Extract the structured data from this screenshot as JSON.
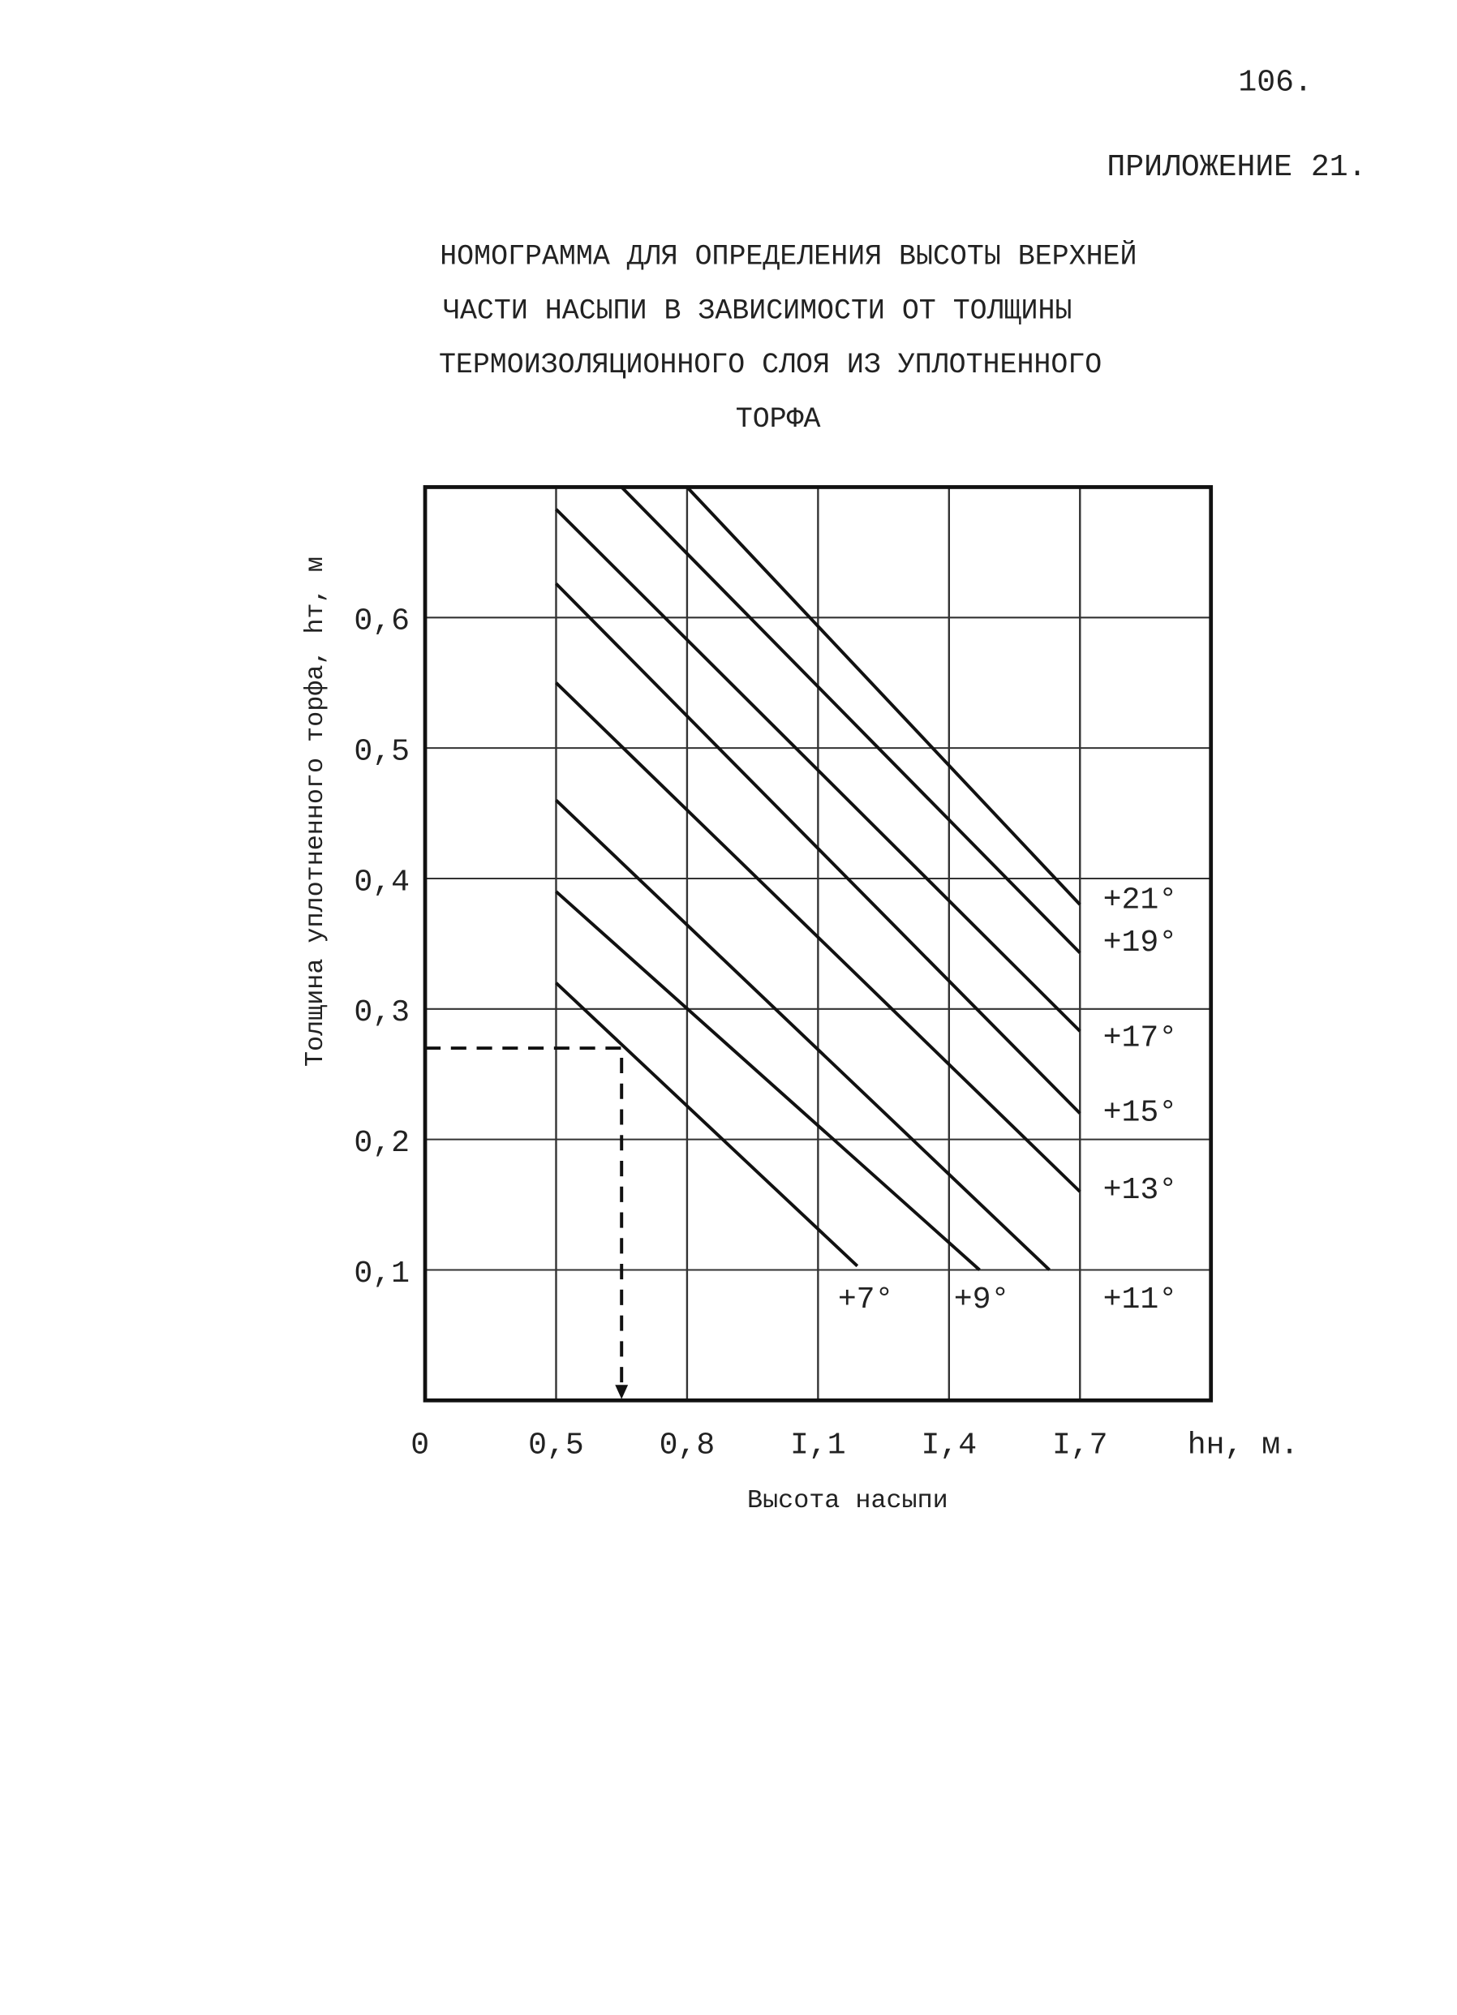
{
  "page_number": "106.",
  "appendix": "ПРИЛОЖЕНИЕ 21.",
  "chart_data": {
    "type": "line",
    "title_lines": [
      "НОМОГРАММА ДЛЯ ОПРЕДЕЛЕНИЯ ВЫСОТЫ ВЕРХНЕЙ",
      "ЧАСТИ НАСЫПИ В ЗАВИСИМОСТИ ОТ ТОЛЩИНЫ",
      "ТЕРМОИЗОЛЯЦИОННОГО СЛОЯ ИЗ УПЛОТНЕННОГО",
      "ТОРФА"
    ],
    "y_label": "Толщина уплотненного торфа, hт, м",
    "x_label": "Высота насыпи",
    "x_unit_label": "hн, м.",
    "origin_label": "0",
    "xlim": [
      0.2,
      2.0
    ],
    "ylim": [
      0,
      0.7
    ],
    "xticks": [
      {
        "value": 0.5,
        "label": "0,5"
      },
      {
        "value": 0.8,
        "label": "0,8"
      },
      {
        "value": 1.1,
        "label": "I,1"
      },
      {
        "value": 1.4,
        "label": "I,4"
      },
      {
        "value": 1.7,
        "label": "I,7"
      }
    ],
    "yticks": [
      {
        "value": 0.1,
        "label": "0,1"
      },
      {
        "value": 0.2,
        "label": "0,2"
      },
      {
        "value": 0.3,
        "label": "0,3"
      },
      {
        "value": 0.4,
        "label": "0,4"
      },
      {
        "value": 0.5,
        "label": "0,5"
      },
      {
        "value": 0.6,
        "label": "0,6"
      }
    ],
    "grid": true,
    "color": "#111",
    "series": [
      {
        "name": "+7°",
        "x": [
          0.5,
          1.19
        ],
        "values": [
          0.32,
          0.103
        ]
      },
      {
        "name": "+9°",
        "x": [
          0.5,
          1.47
        ],
        "values": [
          0.39,
          0.1
        ]
      },
      {
        "name": "+11°",
        "x": [
          0.5,
          1.63
        ],
        "values": [
          0.46,
          0.1
        ]
      },
      {
        "name": "+13°",
        "x": [
          0.5,
          1.7
        ],
        "values": [
          0.55,
          0.16
        ]
      },
      {
        "name": "+15°",
        "x": [
          0.5,
          1.7
        ],
        "values": [
          0.626,
          0.22
        ]
      },
      {
        "name": "+17°",
        "x": [
          0.5,
          1.7
        ],
        "values": [
          0.683,
          0.283
        ]
      },
      {
        "name": "+19°",
        "x": [
          0.65,
          1.7
        ],
        "values": [
          0.7,
          0.343
        ]
      },
      {
        "name": "+21°",
        "x": [
          0.8,
          1.7
        ],
        "values": [
          0.7,
          0.38
        ]
      }
    ],
    "example": {
      "x": 0.65,
      "y": 0.27
    }
  }
}
